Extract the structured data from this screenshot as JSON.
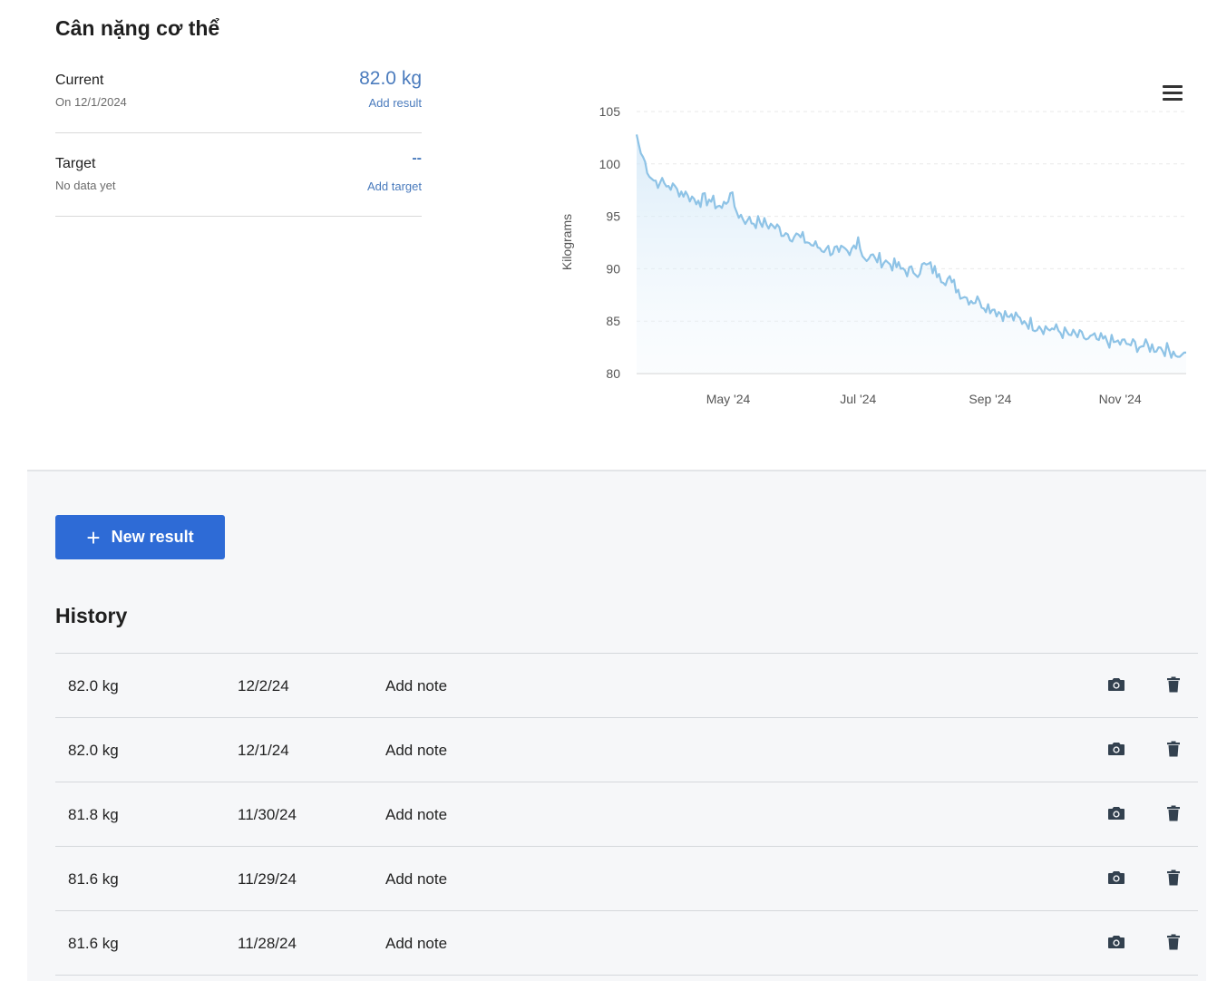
{
  "page": {
    "title": "Cân nặng cơ thể"
  },
  "current": {
    "label": "Current",
    "date": "On 12/1/2024",
    "value": "82.0 kg",
    "action": "Add result"
  },
  "target": {
    "label": "Target",
    "status": "No data yet",
    "value": "--",
    "action": "Add target"
  },
  "chart_data": {
    "type": "area",
    "ylabel": "Kilograms",
    "xlabel": "",
    "ylim": [
      80,
      105
    ],
    "y_ticks": [
      105,
      100,
      95,
      90,
      85,
      80
    ],
    "x_ticks": [
      "May '24",
      "Jul '24",
      "Sep '24",
      "Nov '24"
    ],
    "x_range": [
      "2024-03-19",
      "2024-12-02"
    ],
    "series": [
      {
        "color": "#8ec3e6",
        "points": [
          [
            "2024-03-19",
            102.8
          ],
          [
            "2024-03-21",
            101.0
          ],
          [
            "2024-03-23",
            100.2
          ],
          [
            "2024-03-26",
            98.6
          ],
          [
            "2024-03-30",
            98.2
          ],
          [
            "2024-04-03",
            97.9
          ],
          [
            "2024-04-07",
            97.6
          ],
          [
            "2024-04-12",
            97.0
          ],
          [
            "2024-04-17",
            96.5
          ],
          [
            "2024-04-22",
            96.6
          ],
          [
            "2024-04-28",
            95.8
          ],
          [
            "2024-05-02",
            97.2
          ],
          [
            "2024-05-05",
            95.4
          ],
          [
            "2024-05-10",
            94.6
          ],
          [
            "2024-05-16",
            94.4
          ],
          [
            "2024-05-22",
            94.1
          ],
          [
            "2024-05-28",
            93.4
          ],
          [
            "2024-06-04",
            93.0
          ],
          [
            "2024-06-10",
            92.2
          ],
          [
            "2024-06-16",
            91.9
          ],
          [
            "2024-06-22",
            91.6
          ],
          [
            "2024-06-27",
            91.3
          ],
          [
            "2024-07-01",
            93.0
          ],
          [
            "2024-07-03",
            91.2
          ],
          [
            "2024-07-09",
            91.0
          ],
          [
            "2024-07-15",
            90.6
          ],
          [
            "2024-07-21",
            90.0
          ],
          [
            "2024-07-27",
            89.6
          ],
          [
            "2024-08-02",
            90.4
          ],
          [
            "2024-08-08",
            89.5
          ],
          [
            "2024-08-14",
            88.7
          ],
          [
            "2024-08-20",
            87.3
          ],
          [
            "2024-08-27",
            86.9
          ],
          [
            "2024-09-03",
            86.1
          ],
          [
            "2024-09-10",
            85.4
          ],
          [
            "2024-09-17",
            85.0
          ],
          [
            "2024-09-24",
            84.5
          ],
          [
            "2024-10-01",
            84.2
          ],
          [
            "2024-10-08",
            83.7
          ],
          [
            "2024-10-15",
            83.4
          ],
          [
            "2024-10-22",
            83.2
          ],
          [
            "2024-10-29",
            83.0
          ],
          [
            "2024-11-05",
            82.8
          ],
          [
            "2024-11-12",
            82.6
          ],
          [
            "2024-11-19",
            82.5
          ],
          [
            "2024-11-26",
            82.1
          ],
          [
            "2024-11-28",
            81.6
          ],
          [
            "2024-11-29",
            81.6
          ],
          [
            "2024-11-30",
            81.8
          ],
          [
            "2024-12-01",
            82.0
          ],
          [
            "2024-12-02",
            82.0
          ]
        ]
      }
    ]
  },
  "actions": {
    "new_result": "New result"
  },
  "history": {
    "title": "History",
    "rows": [
      {
        "weight": "82.0 kg",
        "date": "12/2/24",
        "note": "Add note"
      },
      {
        "weight": "82.0 kg",
        "date": "12/1/24",
        "note": "Add note"
      },
      {
        "weight": "81.8 kg",
        "date": "11/30/24",
        "note": "Add note"
      },
      {
        "weight": "81.6 kg",
        "date": "11/29/24",
        "note": "Add note"
      },
      {
        "weight": "81.6 kg",
        "date": "11/28/24",
        "note": "Add note"
      }
    ]
  },
  "icons": {
    "menu": "hamburger-menu-icon",
    "photo": "camera-icon",
    "delete": "trash-icon",
    "add": "plus-icon"
  }
}
